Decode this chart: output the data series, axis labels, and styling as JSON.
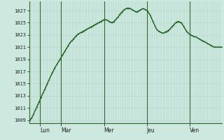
{
  "bg_color": "#cce8df",
  "line_color": "#1a5c1a",
  "grid_color_v": "#b8d8cc",
  "grid_color_h": "#b8d8cc",
  "day_line_color": "#336633",
  "border_color": "#336633",
  "ylim": [
    1008.5,
    1028.5
  ],
  "yticks": [
    1009,
    1011,
    1013,
    1015,
    1017,
    1019,
    1021,
    1023,
    1025,
    1027
  ],
  "day_labels": [
    "Lun",
    "Mar",
    "Mer",
    "Jeu",
    "Ven"
  ],
  "day_positions": [
    12,
    36,
    84,
    132,
    180
  ],
  "total_hours": 216,
  "num_vgrid": 108,
  "pressure_data": [
    1009.0,
    1009.1,
    1009.3,
    1009.6,
    1010.0,
    1010.4,
    1010.8,
    1011.2,
    1011.6,
    1012.0,
    1012.4,
    1012.8,
    1013.2,
    1013.6,
    1014.0,
    1014.4,
    1014.8,
    1015.2,
    1015.6,
    1016.0,
    1016.4,
    1016.8,
    1017.1,
    1017.5,
    1017.8,
    1018.1,
    1018.4,
    1018.7,
    1019.0,
    1019.3,
    1019.6,
    1019.9,
    1020.2,
    1020.5,
    1020.8,
    1021.1,
    1021.4,
    1021.7,
    1021.9,
    1022.1,
    1022.3,
    1022.5,
    1022.7,
    1022.9,
    1023.1,
    1023.2,
    1023.3,
    1023.4,
    1023.5,
    1023.6,
    1023.7,
    1023.8,
    1023.9,
    1024.0,
    1024.1,
    1024.2,
    1024.3,
    1024.4,
    1024.5,
    1024.6,
    1024.7,
    1024.8,
    1024.9,
    1025.0,
    1025.1,
    1025.2,
    1025.3,
    1025.4,
    1025.5,
    1025.5,
    1025.5,
    1025.4,
    1025.3,
    1025.2,
    1025.1,
    1025.0,
    1025.1,
    1025.2,
    1025.4,
    1025.6,
    1025.8,
    1026.0,
    1026.3,
    1026.5,
    1026.7,
    1026.9,
    1027.1,
    1027.2,
    1027.3,
    1027.4,
    1027.4,
    1027.4,
    1027.3,
    1027.2,
    1027.1,
    1027.0,
    1026.9,
    1026.8,
    1026.8,
    1026.9,
    1027.0,
    1027.1,
    1027.2,
    1027.3,
    1027.3,
    1027.2,
    1027.1,
    1027.0,
    1026.8,
    1026.5,
    1026.2,
    1025.8,
    1025.4,
    1025.0,
    1024.6,
    1024.2,
    1023.9,
    1023.7,
    1023.6,
    1023.5,
    1023.4,
    1023.3,
    1023.3,
    1023.4,
    1023.5,
    1023.6,
    1023.7,
    1023.8,
    1024.0,
    1024.2,
    1024.4,
    1024.6,
    1024.8,
    1025.0,
    1025.1,
    1025.2,
    1025.2,
    1025.1,
    1025.0,
    1024.8,
    1024.5,
    1024.2,
    1023.9,
    1023.6,
    1023.4,
    1023.2,
    1023.1,
    1023.0,
    1022.9,
    1022.8,
    1022.7,
    1022.7,
    1022.6,
    1022.5,
    1022.4,
    1022.3,
    1022.2,
    1022.1,
    1022.0,
    1021.9,
    1021.8,
    1021.7,
    1021.6,
    1021.5,
    1021.4,
    1021.3,
    1021.2,
    1021.1,
    1021.0,
    1021.0,
    1021.0,
    1021.0,
    1021.0,
    1021.0,
    1021.0,
    1021.0
  ]
}
